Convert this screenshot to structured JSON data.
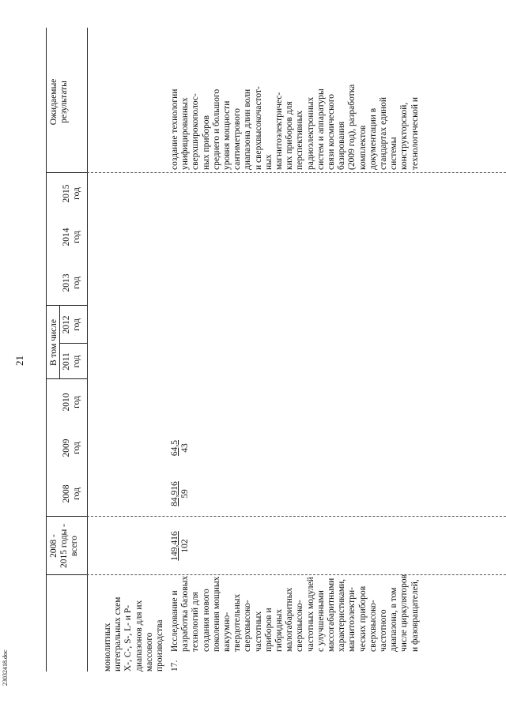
{
  "page_number": "21",
  "doc_id": "23032418.doc",
  "header": {
    "total_col": "2008 -\n2015 годы -\nвсего",
    "including": "В том числе",
    "years": [
      {
        "year": "2008",
        "unit": "год"
      },
      {
        "year": "2009",
        "unit": "год"
      },
      {
        "year": "2010",
        "unit": "год"
      },
      {
        "year": "2011",
        "unit": "год"
      },
      {
        "year": "2012",
        "unit": "год"
      },
      {
        "year": "2013",
        "unit": "год"
      },
      {
        "year": "2014",
        "unit": "год"
      },
      {
        "year": "2015",
        "unit": "год"
      }
    ],
    "results": "Ожидаемые\nрезультаты"
  },
  "carryover_text": "монолитных\nинтегральных схем\nX-, C-, S-, L- и P-\nдиапазонов для их\nмассового\nпроизводства",
  "row17": {
    "number": "17.",
    "title": "Исследование и\nразработка базовых\nтехнологий для\nсоздания нового\nпоколения мощных\nвакуумно-\nтвердотельных\nсверхвысоко-\nчастотных\nприборов и\nгибридных\nмалогабаритных\nсверхвысоко-\nчастотных модулей\nс улучшенными\nмассогабаритными\nхарактеристиками,\nмагнитоэлектри-\nческих приборов\nсверхвысоко-\nчастотного\nдиапазона, в том\nчисле циркуляторов\nи фазовращателей,",
    "total": {
      "value": "149,416",
      "sub": "102"
    },
    "y2008": {
      "value": "84,916",
      "sub": "59"
    },
    "y2009": {
      "value": "64,5",
      "sub": "43"
    }
  },
  "results_text": "создание технологии\nунифицированных\nсверхширокополос-\nных приборов\nсреднего и большого\nуровня мощности\nсантиметрового\nдиапазона длин волн\nи сверхвысокочастот-\nных\nмагнитоэлектричес-\nких приборов для\nперспективных\nрадиоэлектронных\nсистем и аппаратуры\nсвязи космического\nбазирования\n(2009 год), разработка\nкомплектов\nдокументации в\nстандартах единой\nсистемы\nконструкторской,\nтехнологической и"
}
